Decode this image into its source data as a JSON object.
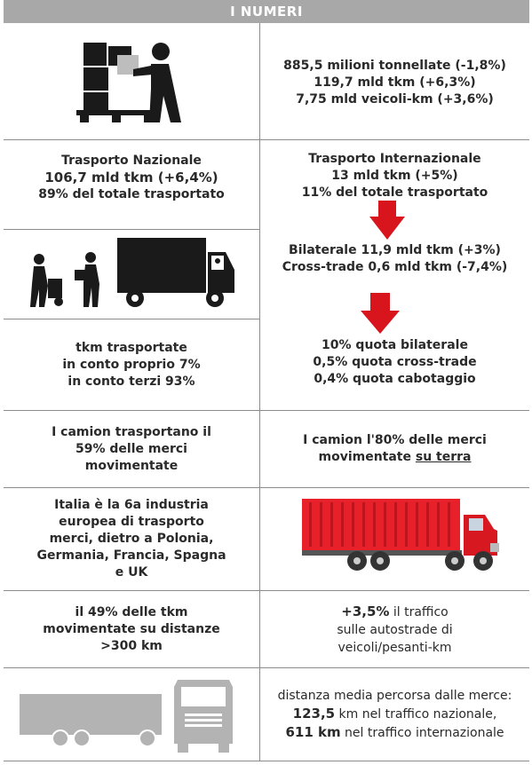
{
  "header": {
    "title": "I NUMERI"
  },
  "icons": {
    "worker_pallet": "worker-with-boxes-on-pallet",
    "workers_truck": "workers-loading-truck",
    "arrow_1": "down-arrow",
    "arrow_2": "down-arrow",
    "container_truck": "red-container-truck",
    "gray_truck": "gray-truck-side-front"
  },
  "colors": {
    "header_bg": "#a8a8a8",
    "arrow": "#d8151c",
    "container": "#e8202a"
  },
  "row1": {
    "right": [
      "885,5 milioni  tonnellate (-1,8%)",
      "119,7  mld tkm (+6,3%)",
      "7,75 mld veicoli-km (+3,6%)"
    ]
  },
  "row2": {
    "left": {
      "title": "Trasporto Nazionale",
      "line2": "106,7 mld tkm (+6,4%)",
      "line3": "89% del totale trasportato"
    },
    "right": {
      "title": "Trasporto Internazionale",
      "line2": "13 mld tkm (+5%)",
      "line3": "11% del totale trasportato"
    }
  },
  "row3": {
    "right": {
      "line1": "Bilaterale 11,9 mld tkm (+3%)",
      "line2": "Cross-trade 0,6 mld tkm (-7,4%)"
    }
  },
  "row4": {
    "left": {
      "line1": "tkm trasportate",
      "line2": "in conto proprio 7%",
      "line3": "in conto terzi 93%"
    },
    "right": {
      "line1": "10% quota bilaterale",
      "line2": "0,5%  quota cross-trade",
      "line3": "0,4% quota cabotaggio"
    }
  },
  "row5": {
    "left": {
      "line1": "I camion trasportano il",
      "line2": "59% delle merci",
      "line3": "movimentate"
    },
    "right": {
      "line1": "I camion l'80% delle merci",
      "line2a": "movimentate ",
      "line2b": "su terra"
    }
  },
  "row6": {
    "left": {
      "line1": "Italia è la 6a industria",
      "line2": "europea di trasporto",
      "line3": "merci, dietro a Polonia,",
      "line4": "Germania, Francia, Spagna",
      "line5": "e UK"
    }
  },
  "row7": {
    "left": {
      "line1": "il 49% delle tkm",
      "line2": "movimentate su distanze",
      "line3": ">300 km"
    },
    "right": {
      "line1a": "+3,5%",
      "line1b": " il traffico",
      "line2": "sulle autostrade di",
      "line3": "veicoli/pesanti-km"
    }
  },
  "row8": {
    "right": {
      "line1": "distanza media percorsa dalle merce:",
      "line2a": "123,5",
      "line2b": " km nel traffico nazionale,",
      "line3a": "611 km",
      "line3b": " nel traffico internazionale"
    }
  }
}
